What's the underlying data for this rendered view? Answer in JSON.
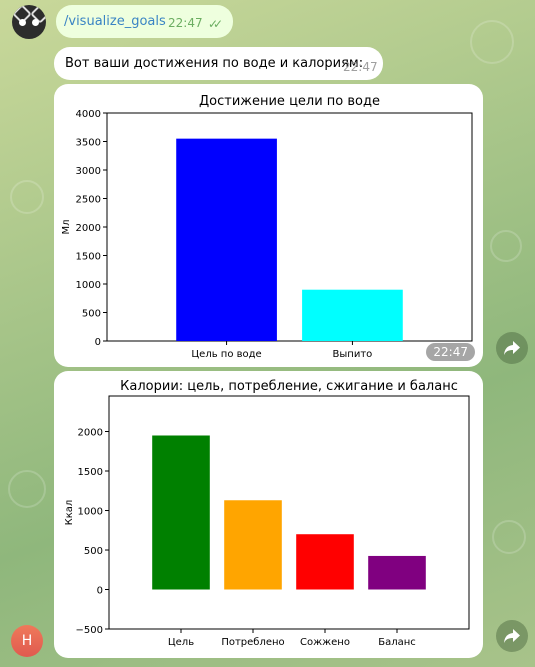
{
  "chat": {
    "outgoing": {
      "text": "/visualize_goals",
      "time": "22:47"
    },
    "incoming": {
      "text": "Вот ваши достижения по воде и калориям:",
      "time": "22:47"
    },
    "chart1_time": "22:47",
    "user_initial": "Н"
  },
  "colors": {
    "accent": "#3a84c4",
    "outgoing_bg": "#eeffde",
    "check": "#6cae62"
  },
  "chart_data": [
    {
      "type": "bar",
      "title": "Достижение цели по воде",
      "xlabel": "",
      "ylabel": "Мл",
      "categories": [
        "Цель по воде",
        "Выпито"
      ],
      "values": [
        3550,
        900
      ],
      "colors": [
        "#0000ff",
        "#00ffff"
      ],
      "ylim": [
        0,
        4000
      ],
      "yticks": [
        0,
        500,
        1000,
        1500,
        2000,
        2500,
        3000,
        3500,
        4000
      ],
      "ytick_labels": [
        "0",
        "500",
        "1000",
        "1500",
        "2000",
        "2500",
        "3000",
        "3500",
        "4000"
      ]
    },
    {
      "type": "bar",
      "title": "Калории: цель, потребление, сжигание и баланс",
      "xlabel": "",
      "ylabel": "Ккал",
      "categories": [
        "Цель",
        "Потреблено",
        "Сожжено",
        "Баланс"
      ],
      "values": [
        1950,
        1130,
        700,
        425
      ],
      "colors": [
        "#008000",
        "#ffa500",
        "#ff0000",
        "#800080"
      ],
      "ylim": [
        -500,
        2450
      ],
      "yticks": [
        -500,
        0,
        500,
        1000,
        1500,
        2000
      ],
      "ytick_labels": [
        "−500",
        "0",
        "500",
        "1000",
        "1500",
        "2000"
      ]
    }
  ]
}
